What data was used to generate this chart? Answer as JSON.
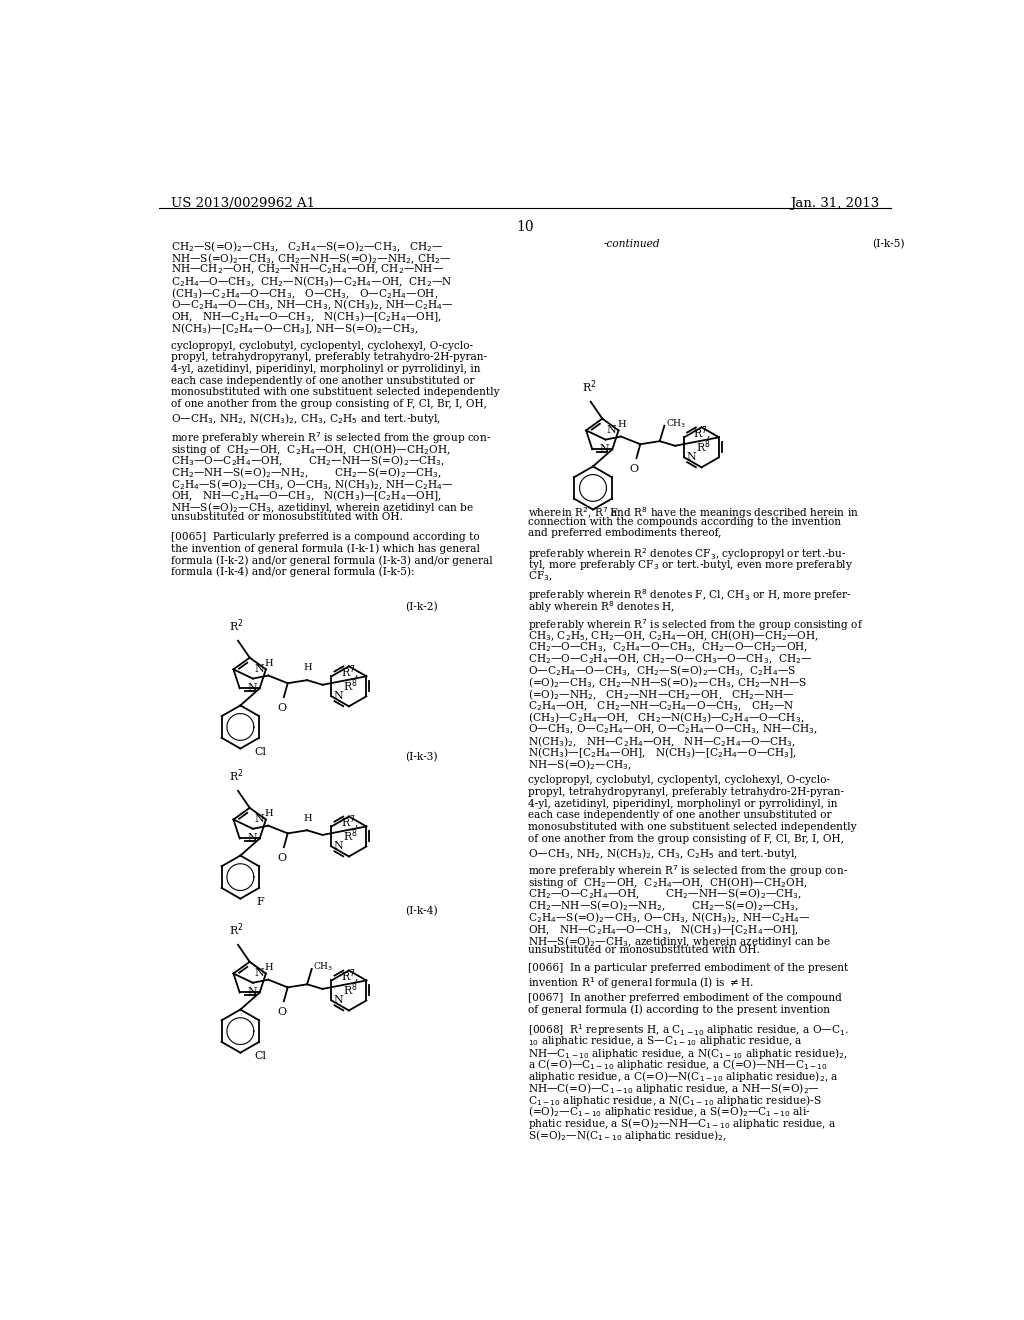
{
  "page_header_left": "US 2013/0029962 A1",
  "page_header_right": "Jan. 31, 2013",
  "page_number": "10",
  "background_color": "#ffffff",
  "text_color": "#000000",
  "continued_label": "-continued",
  "formula_label_k5": "(I-k-5)",
  "formula_label_k2": "(I-k-2)",
  "formula_label_k3": "(I-k-3)",
  "formula_label_k4": "(I-k-4)"
}
